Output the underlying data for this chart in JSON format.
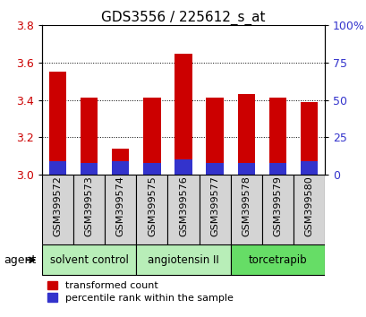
{
  "title": "GDS3556 / 225612_s_at",
  "categories": [
    "GSM399572",
    "GSM399573",
    "GSM399574",
    "GSM399575",
    "GSM399576",
    "GSM399577",
    "GSM399578",
    "GSM399579",
    "GSM399580"
  ],
  "red_values": [
    3.55,
    3.41,
    3.14,
    3.41,
    3.65,
    3.41,
    3.43,
    3.41,
    3.39
  ],
  "blue_values": [
    3.07,
    3.06,
    3.07,
    3.06,
    3.08,
    3.06,
    3.06,
    3.06,
    3.07
  ],
  "base": 3.0,
  "ymin": 3.0,
  "ymax": 3.8,
  "yticks": [
    3.0,
    3.2,
    3.4,
    3.6,
    3.8
  ],
  "right_yticks": [
    0,
    25,
    50,
    75,
    100
  ],
  "right_yticklabels": [
    "0",
    "25",
    "50",
    "75",
    "100%"
  ],
  "groups": [
    {
      "label": "solvent control",
      "indices": [
        0,
        1,
        2
      ],
      "color": "#b8eeb8"
    },
    {
      "label": "angiotensin II",
      "indices": [
        3,
        4,
        5
      ],
      "color": "#b8eeb8"
    },
    {
      "label": "torcetrapib",
      "indices": [
        6,
        7,
        8
      ],
      "color": "#66dd66"
    }
  ],
  "agent_label": "agent",
  "red_color": "#cc0000",
  "blue_color": "#3333cc",
  "bar_width": 0.55,
  "legend_items": [
    "transformed count",
    "percentile rank within the sample"
  ],
  "tick_label_color_left": "#cc0000",
  "tick_label_color_right": "#3333cc",
  "title_fontsize": 11,
  "tick_fontsize": 9,
  "xtick_fontsize": 8
}
